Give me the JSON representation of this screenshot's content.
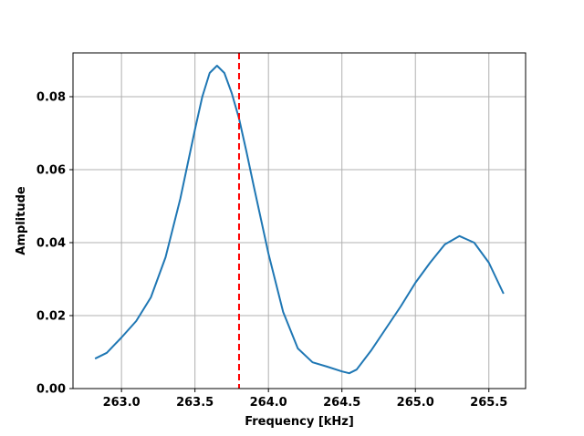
{
  "chart_data": {
    "type": "line",
    "title": "",
    "xlabel": "Frequency [kHz]",
    "ylabel": "Amplitude",
    "xlim": [
      262.67,
      265.75
    ],
    "ylim": [
      0.0,
      0.092
    ],
    "grid": true,
    "x_ticks": [
      263.0,
      263.5,
      264.0,
      264.5,
      265.0,
      265.5
    ],
    "x_tick_labels": [
      "263.0",
      "263.5",
      "264.0",
      "264.5",
      "265.0",
      "265.5"
    ],
    "y_ticks": [
      0.0,
      0.02,
      0.04,
      0.06,
      0.08
    ],
    "y_tick_labels": [
      "0.00",
      "0.02",
      "0.04",
      "0.06",
      "0.08"
    ],
    "series": [
      {
        "color": "#1f77b4",
        "x": [
          262.82,
          262.9,
          263.0,
          263.1,
          263.2,
          263.3,
          263.4,
          263.5,
          263.55,
          263.6,
          263.65,
          263.7,
          263.75,
          263.8,
          263.85,
          263.9,
          264.0,
          264.1,
          264.2,
          264.3,
          264.4,
          264.5,
          264.55,
          264.6,
          264.7,
          264.8,
          264.9,
          265.0,
          265.1,
          265.2,
          265.3,
          265.4,
          265.5,
          265.6
        ],
        "y": [
          0.0082,
          0.0098,
          0.014,
          0.0185,
          0.025,
          0.036,
          0.052,
          0.071,
          0.08,
          0.0865,
          0.0885,
          0.0865,
          0.081,
          0.074,
          0.065,
          0.0555,
          0.037,
          0.021,
          0.011,
          0.0072,
          0.006,
          0.0047,
          0.0042,
          0.0052,
          0.0105,
          0.0165,
          0.0225,
          0.029,
          0.0345,
          0.0395,
          0.0418,
          0.04,
          0.0345,
          0.026
        ]
      }
    ],
    "vlines": [
      {
        "x": 263.8,
        "color": "#ff0000",
        "style": "dashed"
      }
    ]
  }
}
